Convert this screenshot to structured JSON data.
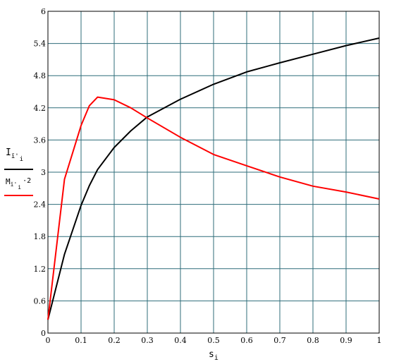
{
  "chart_data": {
    "type": "line",
    "xlabel": {
      "main": "s",
      "sub": "i"
    },
    "ylabel": {
      "series1": {
        "main": "I",
        "sub": "ĭ'",
        "subsub": "i"
      },
      "series2": {
        "main": "M",
        "sub": "ĭ'",
        "subsub": "i",
        "suffix": "·2"
      }
    },
    "xlim": [
      0,
      1
    ],
    "ylim": [
      0,
      6
    ],
    "x_ticks": [
      "0",
      "0.1",
      "0.2",
      "0.3",
      "0.4",
      "0.5",
      "0.6",
      "0.7",
      "0.8",
      "0.9",
      "1"
    ],
    "y_ticks": [
      "0",
      "0.6",
      "1.2",
      "1.8",
      "2.4",
      "3",
      "3.6",
      "4.2",
      "4.8",
      "5.4",
      "6"
    ],
    "grid": true,
    "series": [
      {
        "color": "#000000",
        "x": [
          0,
          0.05,
          0.1,
          0.125,
          0.15,
          0.2,
          0.25,
          0.3,
          0.4,
          0.5,
          0.6,
          0.7,
          0.8,
          0.9,
          1.0
        ],
        "y": [
          0.25,
          1.47,
          2.38,
          2.75,
          3.05,
          3.46,
          3.77,
          4.03,
          4.36,
          4.64,
          4.87,
          5.04,
          5.2,
          5.36,
          5.5
        ]
      },
      {
        "color": "#ff0000",
        "x": [
          0,
          0.05,
          0.1,
          0.125,
          0.15,
          0.2,
          0.25,
          0.3,
          0.4,
          0.5,
          0.6,
          0.7,
          0.8,
          0.9,
          1.0
        ],
        "y": [
          0.25,
          2.87,
          3.87,
          4.24,
          4.4,
          4.35,
          4.2,
          4.01,
          3.65,
          3.33,
          3.12,
          2.91,
          2.74,
          2.63,
          2.5
        ]
      }
    ]
  }
}
